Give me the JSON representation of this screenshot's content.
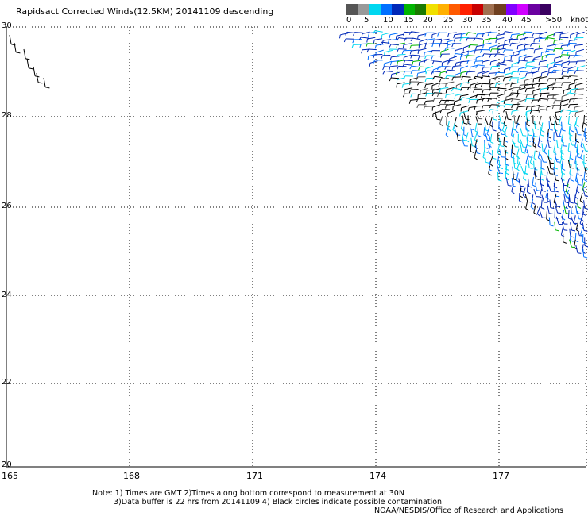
{
  "title": "Rapidsact Corrected Winds(12.5KM) 20141109 descending",
  "legend": {
    "colors": [
      "#555555",
      "#999999",
      "#00d7f0",
      "#0070ff",
      "#0028b8",
      "#00b400",
      "#1a7a00",
      "#f0e000",
      "#ffb000",
      "#ff5a00",
      "#ff2000",
      "#c80000",
      "#a07050",
      "#704020",
      "#8000ff",
      "#d000ff",
      "#6a00a0",
      "#3a0060"
    ],
    "labels": [
      "0",
      "5",
      "10",
      "15",
      "20",
      "25",
      "30",
      "35",
      "40",
      "45",
      ">50"
    ],
    "units": "knots"
  },
  "axes": {
    "lat_ticks": [
      "30",
      "28",
      "26",
      "24",
      "22",
      "20"
    ],
    "lon_ticks": [
      "165",
      "168",
      "171",
      "174",
      "177"
    ],
    "lat_range": [
      20,
      30
    ],
    "lon_range": [
      165,
      177.6
    ],
    "grid": "dotted"
  },
  "notes": {
    "line1": "Note: 1) Times are GMT 2)Times along bottom correspond to measurement at 30N",
    "line2": "3)Data buffer is 22 hrs from 20141109 4) Black circles indicate possible contamination",
    "line3": "NOAA/NESDIS/Office of Research and Applications"
  }
}
